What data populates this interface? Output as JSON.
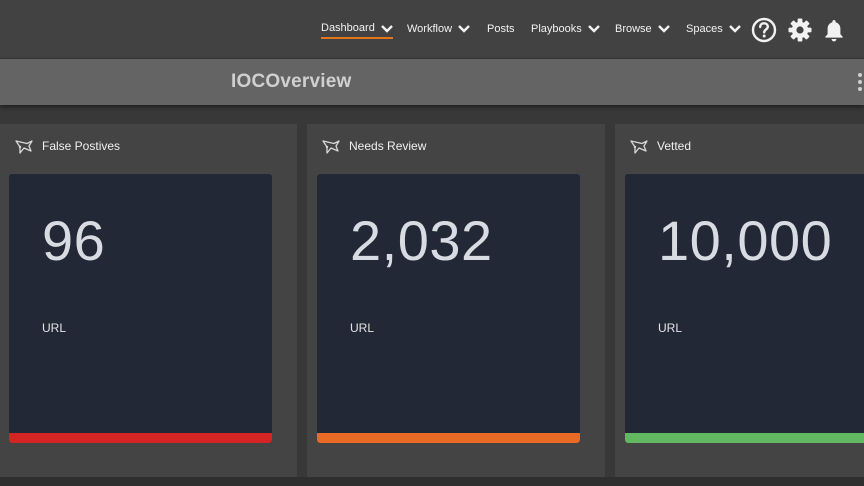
{
  "nav": {
    "items": [
      {
        "label": "Dashboard",
        "has_dropdown": true,
        "active": true
      },
      {
        "label": "Workflow",
        "has_dropdown": true,
        "active": false
      },
      {
        "label": "Posts",
        "has_dropdown": false,
        "active": false
      },
      {
        "label": "Playbooks",
        "has_dropdown": true,
        "active": false
      },
      {
        "label": "Browse",
        "has_dropdown": true,
        "active": false
      },
      {
        "label": "Spaces",
        "has_dropdown": true,
        "active": false
      }
    ],
    "icons": [
      "help-icon",
      "gear-icon",
      "bell-icon"
    ],
    "accent": "#e3761c"
  },
  "page": {
    "title": "IOCOverview"
  },
  "widgets": [
    {
      "title": "False Postives",
      "value": "96",
      "unit": "URL",
      "bar_color": "#d42424",
      "icon": "analyst-icon"
    },
    {
      "title": "Needs Review",
      "value": "2,032",
      "unit": "URL",
      "bar_color": "#e86a25",
      "icon": "analyst-icon"
    },
    {
      "title": "Vetted",
      "value": "10,000",
      "unit": "URL",
      "bar_color": "#62b861",
      "icon": "analyst-icon"
    }
  ]
}
